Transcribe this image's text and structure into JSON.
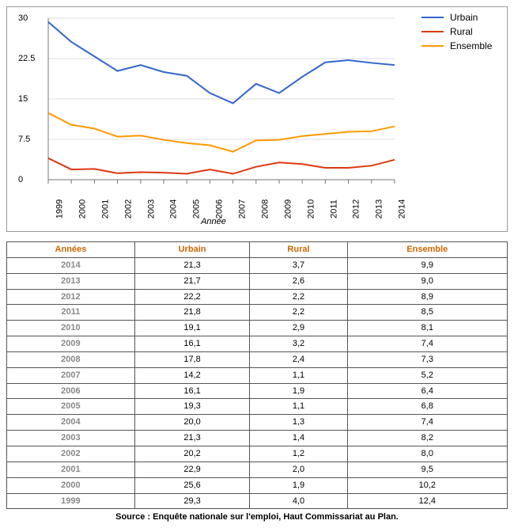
{
  "chart": {
    "type": "line",
    "x_axis_label": "Année",
    "ylim": [
      0,
      30
    ],
    "ytick_step": 7.5,
    "yticks": [
      0,
      7.5,
      15,
      22.5,
      30
    ],
    "years": [
      1999,
      2000,
      2001,
      2002,
      2003,
      2004,
      2005,
      2006,
      2007,
      2008,
      2009,
      2010,
      2011,
      2012,
      2013,
      2014
    ],
    "grid_color": "#dddddd",
    "background_color": "#ffffff",
    "axis_color": "#777777",
    "line_width": 2,
    "label_fontsize": 11,
    "series": [
      {
        "name": "Urbain",
        "color": "#3366cc",
        "values": [
          29.3,
          25.6,
          22.9,
          20.2,
          21.3,
          20.0,
          19.3,
          16.1,
          14.2,
          17.8,
          16.1,
          19.1,
          21.8,
          22.2,
          21.7,
          21.3
        ]
      },
      {
        "name": "Rural",
        "color": "#dc3912",
        "values": [
          4.0,
          1.9,
          2.0,
          1.2,
          1.4,
          1.3,
          1.1,
          1.9,
          1.1,
          2.4,
          3.2,
          2.9,
          2.2,
          2.2,
          2.6,
          3.7
        ]
      },
      {
        "name": "Ensemble",
        "color": "#ff9900",
        "values": [
          12.4,
          10.2,
          9.5,
          8.0,
          8.2,
          7.4,
          6.8,
          6.4,
          5.2,
          7.3,
          7.4,
          8.1,
          8.5,
          8.9,
          9.0,
          9.9
        ]
      }
    ]
  },
  "table": {
    "columns": [
      "Années",
      "Urbain",
      "Rural",
      "Ensemble"
    ],
    "header_color": "#cc6600",
    "year_color": "#888888",
    "border_color": "#555555",
    "rows": [
      [
        "2014",
        "21,3",
        "3,7",
        "9,9"
      ],
      [
        "2013",
        "21,7",
        "2,6",
        "9,0"
      ],
      [
        "2012",
        "22,2",
        "2,2",
        "8,9"
      ],
      [
        "2011",
        "21,8",
        "2,2",
        "8,5"
      ],
      [
        "2010",
        "19,1",
        "2,9",
        "8,1"
      ],
      [
        "2009",
        "16,1",
        "3,2",
        "7,4"
      ],
      [
        "2008",
        "17,8",
        "2,4",
        "7,3"
      ],
      [
        "2007",
        "14,2",
        "1,1",
        "5,2"
      ],
      [
        "2006",
        "16,1",
        "1,9",
        "6,4"
      ],
      [
        "2005",
        "19,3",
        "1,1",
        "6,8"
      ],
      [
        "2004",
        "20,0",
        "1,3",
        "7,4"
      ],
      [
        "2003",
        "21,3",
        "1,4",
        "8,2"
      ],
      [
        "2002",
        "20,2",
        "1,2",
        "8,0"
      ],
      [
        "2001",
        "22,9",
        "2,0",
        "9,5"
      ],
      [
        "2000",
        "25,6",
        "1,9",
        "10,2"
      ],
      [
        "1999",
        "29,3",
        "4,0",
        "12,4"
      ]
    ]
  },
  "source": "Source : Enquête nationale sur l'emploi, Haut Commissariat au Plan."
}
